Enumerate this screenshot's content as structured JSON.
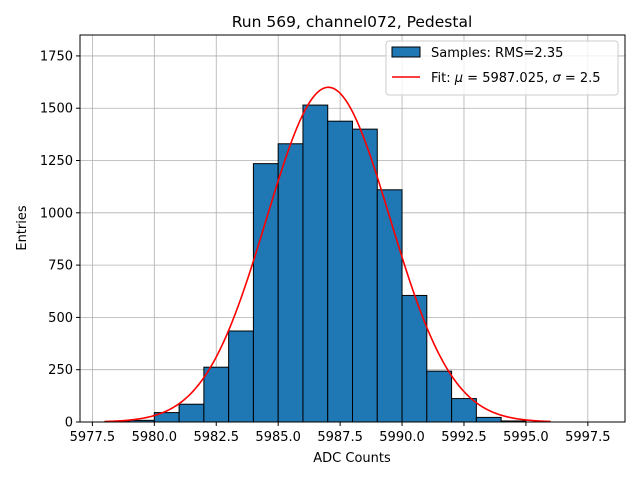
{
  "chart_data": {
    "type": "bar",
    "title": "Run 569, channel072, Pedestal",
    "xlabel": "ADC Counts",
    "ylabel": "Entries",
    "xlim": [
      5977.0,
      5999.0
    ],
    "ylim": [
      0,
      1850
    ],
    "grid": true,
    "x_ticks": [
      5977.5,
      5980.0,
      5982.5,
      5985.0,
      5987.5,
      5990.0,
      5992.5,
      5995.0,
      5997.5
    ],
    "x_tick_labels": [
      "5977.5",
      "5980.0",
      "5982.5",
      "5985.0",
      "5987.5",
      "5990.0",
      "5992.5",
      "5995.0",
      "5997.5"
    ],
    "y_ticks": [
      0,
      250,
      500,
      750,
      1000,
      1250,
      1500,
      1750
    ],
    "y_tick_labels": [
      "0",
      "250",
      "500",
      "750",
      "1000",
      "1250",
      "1500",
      "1750"
    ],
    "histogram": {
      "name": "Samples: RMS=2.35",
      "color": "#1f77b4",
      "edge_color": "#000000",
      "bin_edges": [
        5978,
        5979,
        5980,
        5981,
        5982,
        5983,
        5984,
        5985,
        5986,
        5987,
        5988,
        5989,
        5990,
        5991,
        5992,
        5993,
        5994,
        5995,
        5996
      ],
      "counts": [
        2,
        8,
        45,
        85,
        262,
        435,
        1235,
        1330,
        1515,
        1438,
        1400,
        1110,
        605,
        243,
        112,
        22,
        5,
        0
      ]
    },
    "fit": {
      "name": "Fit: μ = 5987.025, σ = 2.5",
      "label_prefix": "Fit: ",
      "label_mu": "μ",
      "label_mid": " = 5987.025, ",
      "label_sigma": "σ",
      "label_end": " = 2.5",
      "color": "#ff0000",
      "mu": 5987.025,
      "sigma": 2.5,
      "amplitude": 1600,
      "x_range": [
        5978,
        5996
      ]
    },
    "legend": {
      "placement": "top-right",
      "entries": [
        {
          "label": "Samples: RMS=2.35",
          "kind": "patch"
        },
        {
          "label": "Fit: μ = 5987.025, σ = 2.5",
          "kind": "line"
        }
      ]
    }
  }
}
